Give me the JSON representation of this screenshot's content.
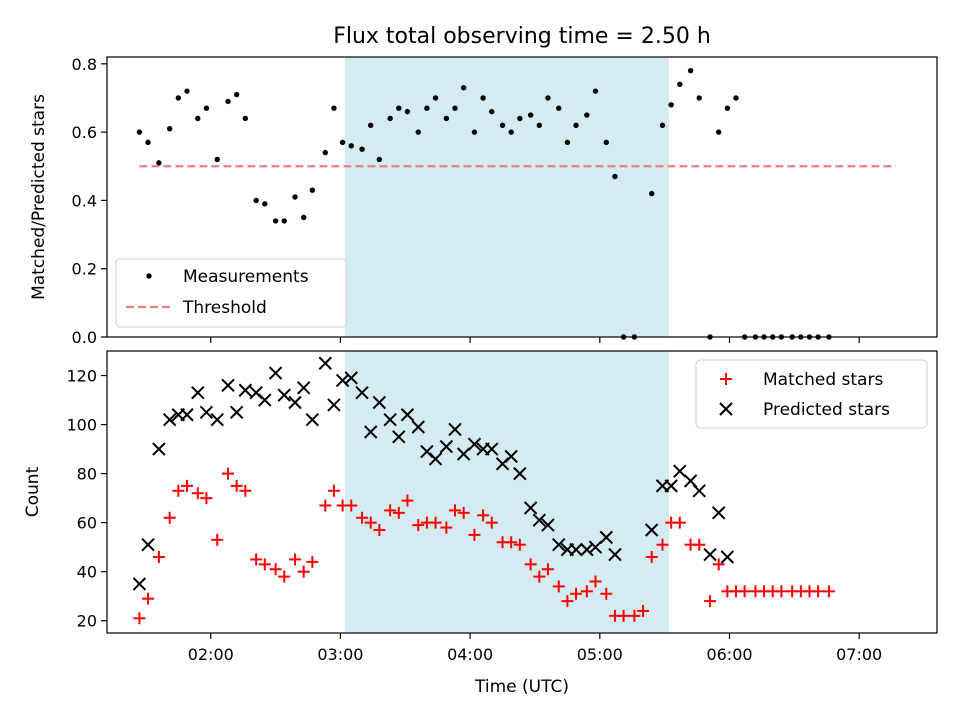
{
  "title": "Flux total observing time = 2.50 h",
  "colors": {
    "shade": "#add8e6",
    "measurement": "#000000",
    "threshold": "#f08080",
    "matched": "#ff0000",
    "predicted": "#000000"
  },
  "chart_data": [
    {
      "type": "scatter",
      "ylabel": "Matched/Predicted stars",
      "xlim": [
        "01:12",
        "07:36"
      ],
      "ylim": [
        0,
        0.82
      ],
      "yticks": [
        0.0,
        0.2,
        0.4,
        0.6,
        0.8
      ],
      "ytick_labels": [
        "0.0",
        "0.2",
        "0.4",
        "0.6",
        "0.8"
      ],
      "shaded_interval": [
        "03:02",
        "05:32"
      ],
      "threshold": {
        "value": 0.5,
        "x_range": [
          "01:27",
          "07:17"
        ]
      },
      "legend": {
        "location": "lower-left",
        "entries": [
          "Measurements",
          "Threshold"
        ]
      },
      "series": [
        {
          "name": "Measurements",
          "marker": "dot",
          "points": [
            [
              "01:27",
              0.6
            ],
            [
              "01:31",
              0.57
            ],
            [
              "01:36",
              0.51
            ],
            [
              "01:41",
              0.61
            ],
            [
              "01:45",
              0.7
            ],
            [
              "01:49",
              0.72
            ],
            [
              "01:54",
              0.64
            ],
            [
              "01:58",
              0.67
            ],
            [
              "02:03",
              0.52
            ],
            [
              "02:08",
              0.69
            ],
            [
              "02:12",
              0.71
            ],
            [
              "02:16",
              0.64
            ],
            [
              "02:21",
              0.4
            ],
            [
              "02:25",
              0.39
            ],
            [
              "02:30",
              0.34
            ],
            [
              "02:34",
              0.34
            ],
            [
              "02:39",
              0.41
            ],
            [
              "02:43",
              0.35
            ],
            [
              "02:47",
              0.43
            ],
            [
              "02:53",
              0.54
            ],
            [
              "02:57",
              0.67
            ],
            [
              "03:01",
              0.57
            ],
            [
              "03:05",
              0.56
            ],
            [
              "03:10",
              0.55
            ],
            [
              "03:14",
              0.62
            ],
            [
              "03:18",
              0.52
            ],
            [
              "03:23",
              0.64
            ],
            [
              "03:27",
              0.67
            ],
            [
              "03:31",
              0.66
            ],
            [
              "03:36",
              0.6
            ],
            [
              "03:40",
              0.67
            ],
            [
              "03:44",
              0.7
            ],
            [
              "03:49",
              0.64
            ],
            [
              "03:53",
              0.67
            ],
            [
              "03:57",
              0.73
            ],
            [
              "04:02",
              0.6
            ],
            [
              "04:06",
              0.7
            ],
            [
              "04:10",
              0.66
            ],
            [
              "04:15",
              0.62
            ],
            [
              "04:19",
              0.6
            ],
            [
              "04:23",
              0.64
            ],
            [
              "04:28",
              0.65
            ],
            [
              "04:32",
              0.62
            ],
            [
              "04:36",
              0.7
            ],
            [
              "04:41",
              0.67
            ],
            [
              "04:45",
              0.57
            ],
            [
              "04:49",
              0.62
            ],
            [
              "04:54",
              0.65
            ],
            [
              "04:58",
              0.72
            ],
            [
              "05:03",
              0.57
            ],
            [
              "05:07",
              0.47
            ],
            [
              "05:11",
              0.0
            ],
            [
              "05:16",
              0.0
            ],
            [
              "05:24",
              0.42
            ],
            [
              "05:29",
              0.62
            ],
            [
              "05:33",
              0.68
            ],
            [
              "05:37",
              0.74
            ],
            [
              "05:42",
              0.78
            ],
            [
              "05:46",
              0.7
            ],
            [
              "05:51",
              0.0
            ],
            [
              "05:55",
              0.6
            ],
            [
              "05:59",
              0.67
            ],
            [
              "06:03",
              0.7
            ],
            [
              "06:07",
              0.0
            ],
            [
              "06:12",
              0.0
            ],
            [
              "06:16",
              0.0
            ],
            [
              "06:20",
              0.0
            ],
            [
              "06:24",
              0.0
            ],
            [
              "06:29",
              0.0
            ],
            [
              "06:33",
              0.0
            ],
            [
              "06:37",
              0.0
            ],
            [
              "06:41",
              0.0
            ],
            [
              "06:46",
              0.0
            ]
          ]
        }
      ]
    },
    {
      "type": "scatter",
      "xlabel": "Time (UTC)",
      "ylabel": "Count",
      "xlim": [
        "01:12",
        "07:36"
      ],
      "ylim": [
        15,
        130
      ],
      "xticks": [
        "02:00",
        "03:00",
        "04:00",
        "05:00",
        "06:00",
        "07:00"
      ],
      "yticks": [
        20,
        40,
        60,
        80,
        100,
        120
      ],
      "ytick_labels": [
        "20",
        "40",
        "60",
        "80",
        "100",
        "120"
      ],
      "shaded_interval": [
        "03:02",
        "05:32"
      ],
      "legend": {
        "location": "upper-right",
        "entries": [
          "Matched stars",
          "Predicted stars"
        ]
      },
      "series": [
        {
          "name": "Matched stars",
          "marker": "plus",
          "points": [
            [
              "01:27",
              21
            ],
            [
              "01:31",
              29
            ],
            [
              "01:36",
              46
            ],
            [
              "01:41",
              62
            ],
            [
              "01:45",
              73
            ],
            [
              "01:49",
              75
            ],
            [
              "01:54",
              72
            ],
            [
              "01:58",
              70
            ],
            [
              "02:03",
              53
            ],
            [
              "02:08",
              80
            ],
            [
              "02:12",
              75
            ],
            [
              "02:16",
              73
            ],
            [
              "02:21",
              45
            ],
            [
              "02:25",
              43
            ],
            [
              "02:30",
              41
            ],
            [
              "02:34",
              38
            ],
            [
              "02:39",
              45
            ],
            [
              "02:43",
              40
            ],
            [
              "02:47",
              44
            ],
            [
              "02:53",
              67
            ],
            [
              "02:57",
              73
            ],
            [
              "03:01",
              67
            ],
            [
              "03:05",
              67
            ],
            [
              "03:10",
              62
            ],
            [
              "03:14",
              60
            ],
            [
              "03:18",
              57
            ],
            [
              "03:23",
              65
            ],
            [
              "03:27",
              64
            ],
            [
              "03:31",
              69
            ],
            [
              "03:36",
              59
            ],
            [
              "03:40",
              60
            ],
            [
              "03:44",
              60
            ],
            [
              "03:49",
              58
            ],
            [
              "03:53",
              65
            ],
            [
              "03:57",
              64
            ],
            [
              "04:02",
              55
            ],
            [
              "04:06",
              63
            ],
            [
              "04:10",
              60
            ],
            [
              "04:15",
              52
            ],
            [
              "04:19",
              52
            ],
            [
              "04:23",
              51
            ],
            [
              "04:28",
              43
            ],
            [
              "04:32",
              38
            ],
            [
              "04:36",
              41
            ],
            [
              "04:41",
              34
            ],
            [
              "04:45",
              28
            ],
            [
              "04:49",
              31
            ],
            [
              "04:54",
              32
            ],
            [
              "04:58",
              36
            ],
            [
              "05:03",
              31
            ],
            [
              "05:07",
              22
            ],
            [
              "05:11",
              22
            ],
            [
              "05:16",
              22
            ],
            [
              "05:20",
              24
            ],
            [
              "05:24",
              46
            ],
            [
              "05:29",
              51
            ],
            [
              "05:33",
              60
            ],
            [
              "05:37",
              60
            ],
            [
              "05:42",
              51
            ],
            [
              "05:46",
              51
            ],
            [
              "05:51",
              28
            ],
            [
              "05:55",
              43
            ],
            [
              "05:59",
              32
            ],
            [
              "06:03",
              32
            ],
            [
              "06:07",
              32
            ],
            [
              "06:12",
              32
            ],
            [
              "06:16",
              32
            ],
            [
              "06:20",
              32
            ],
            [
              "06:24",
              32
            ],
            [
              "06:29",
              32
            ],
            [
              "06:33",
              32
            ],
            [
              "06:37",
              32
            ],
            [
              "06:41",
              32
            ],
            [
              "06:46",
              32
            ]
          ]
        },
        {
          "name": "Predicted stars",
          "marker": "x",
          "points": [
            [
              "01:27",
              35
            ],
            [
              "01:31",
              51
            ],
            [
              "01:36",
              90
            ],
            [
              "01:41",
              102
            ],
            [
              "01:45",
              104
            ],
            [
              "01:49",
              104
            ],
            [
              "01:54",
              113
            ],
            [
              "01:58",
              105
            ],
            [
              "02:03",
              102
            ],
            [
              "02:08",
              116
            ],
            [
              "02:12",
              105
            ],
            [
              "02:16",
              114
            ],
            [
              "02:21",
              113
            ],
            [
              "02:25",
              110
            ],
            [
              "02:30",
              121
            ],
            [
              "02:34",
              112
            ],
            [
              "02:39",
              109
            ],
            [
              "02:43",
              115
            ],
            [
              "02:47",
              102
            ],
            [
              "02:53",
              125
            ],
            [
              "02:57",
              108
            ],
            [
              "03:01",
              118
            ],
            [
              "03:05",
              119
            ],
            [
              "03:10",
              113
            ],
            [
              "03:14",
              97
            ],
            [
              "03:18",
              109
            ],
            [
              "03:23",
              102
            ],
            [
              "03:27",
              95
            ],
            [
              "03:31",
              104
            ],
            [
              "03:36",
              99
            ],
            [
              "03:40",
              89
            ],
            [
              "03:44",
              86
            ],
            [
              "03:49",
              91
            ],
            [
              "03:53",
              98
            ],
            [
              "03:57",
              88
            ],
            [
              "04:02",
              92
            ],
            [
              "04:06",
              90
            ],
            [
              "04:10",
              90
            ],
            [
              "04:15",
              84
            ],
            [
              "04:19",
              87
            ],
            [
              "04:23",
              80
            ],
            [
              "04:28",
              66
            ],
            [
              "04:32",
              61
            ],
            [
              "04:36",
              59
            ],
            [
              "04:41",
              51
            ],
            [
              "04:45",
              49
            ],
            [
              "04:49",
              49
            ],
            [
              "04:54",
              49
            ],
            [
              "04:58",
              50
            ],
            [
              "05:03",
              54
            ],
            [
              "05:07",
              47
            ],
            [
              "05:24",
              57
            ],
            [
              "05:29",
              75
            ],
            [
              "05:33",
              75
            ],
            [
              "05:37",
              81
            ],
            [
              "05:42",
              77
            ],
            [
              "05:46",
              73
            ],
            [
              "05:51",
              47
            ],
            [
              "05:55",
              64
            ],
            [
              "05:59",
              46
            ]
          ]
        }
      ]
    }
  ]
}
